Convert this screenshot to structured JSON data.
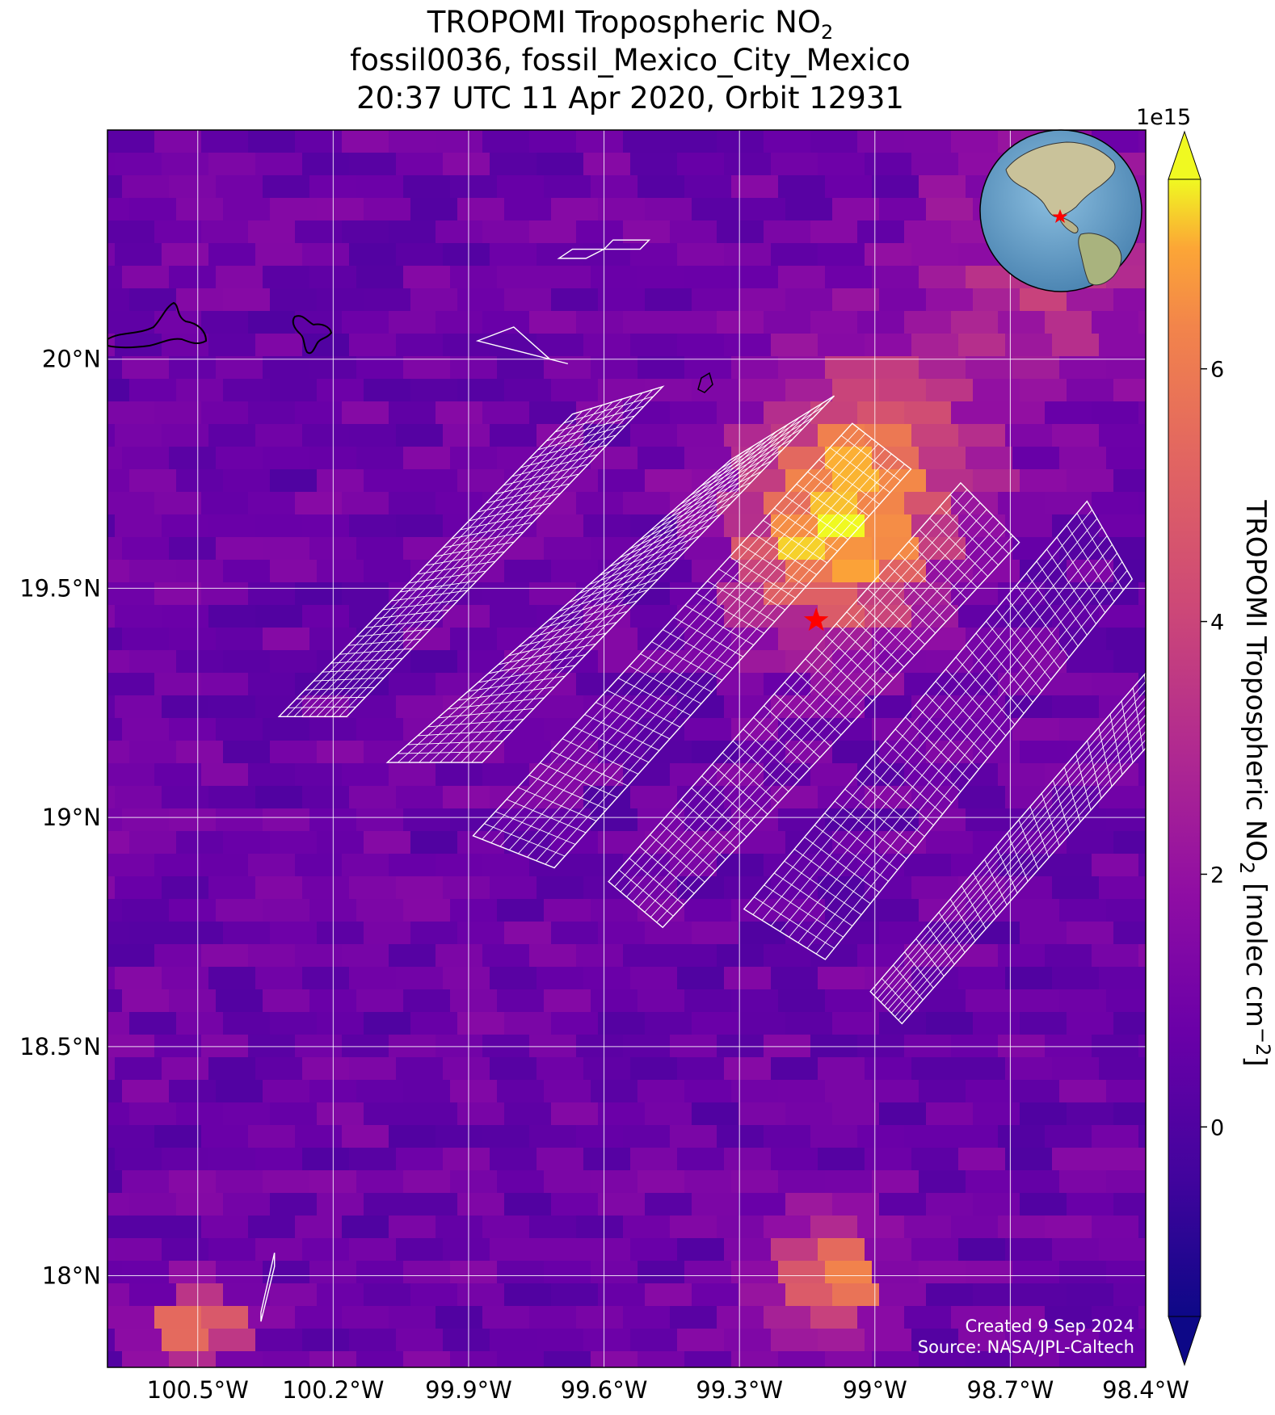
{
  "title": {
    "line1_prefix": "TROPOMI Tropospheric NO",
    "line1_sub": "2",
    "line2": "fossil0036, fossil_Mexico_City_Mexico",
    "line3": "20:37 UTC 11 Apr 2020, Orbit 12931"
  },
  "colorbar": {
    "label_prefix": "TROPOMI Tropospheric NO",
    "label_sub": "2",
    "label_units_prefix": " [molec cm",
    "label_units_sup": "−2",
    "label_units_suffix": "]",
    "exponent": "1e15",
    "ticks": [
      "0",
      "2",
      "4",
      "6"
    ],
    "tick_values": [
      0,
      2,
      4,
      6
    ],
    "range": [
      -1.5,
      7.5
    ],
    "colormap": "plasma",
    "extend": "both"
  },
  "axes": {
    "x_ticks": [
      "100.5°W",
      "100.2°W",
      "99.9°W",
      "99.6°W",
      "99.3°W",
      "99°W",
      "98.7°W",
      "98.4°W"
    ],
    "x_values": [
      -100.5,
      -100.2,
      -99.9,
      -99.6,
      -99.3,
      -99.0,
      -98.7,
      -98.4
    ],
    "y_ticks": [
      "20°N",
      "19.5°N",
      "19°N",
      "18.5°N",
      "18°N"
    ],
    "y_values": [
      20.0,
      19.5,
      19.0,
      18.5,
      18.0
    ],
    "lon_range": [
      -100.7,
      -98.4
    ],
    "lat_range": [
      17.8,
      20.5
    ]
  },
  "credits": {
    "created": "Created 9 Sep 2024",
    "source": "Source: NASA/JPL-Caltech"
  },
  "site": {
    "name": "fossil_Mexico_City_Mexico",
    "marker": "red-star",
    "lon": -99.13,
    "lat": 19.43
  },
  "inset": {
    "description_icon": "globe-inset",
    "marker": "red-star"
  },
  "colors": {
    "grid": "#ffffff",
    "marker": "#ff0000",
    "ocean": "#6fa3c8"
  }
}
